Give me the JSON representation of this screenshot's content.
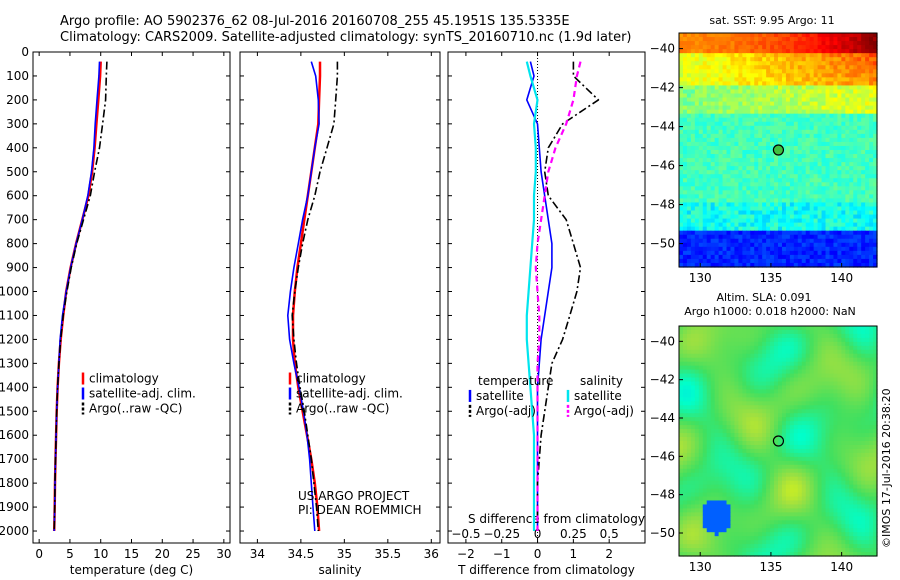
{
  "titles": {
    "line1": "Argo profile: AO 5902376_62 08-Jul-2016 20160708_255 45.1951S 135.5335E",
    "line2": "Climatology: CARS2009. Satellite-adjusted climatology: synTS_20160710.nc (1.9d later)",
    "map1_title": "sat. SST: 9.95 Argo: 11",
    "map2_title1": "Altim. SLA: 0.091",
    "map2_title2": "Argo h1000: 0.018 h2000: NaN",
    "stamp": "©IMOS 17-Jul-2016 20:38:20"
  },
  "colors": {
    "climatology": "#ff0000",
    "satellite": "#0000ff",
    "argo": "#000000",
    "sal_satellite": "#00e5ee",
    "sal_argo": "#ff00ff"
  },
  "chart_data": [
    {
      "type": "line",
      "xlabel": "temperature (deg C)",
      "xlim": [
        -1,
        31
      ],
      "xticks": [
        0,
        5,
        10,
        15,
        20,
        25,
        30
      ],
      "ylim": [
        0,
        2050
      ],
      "yticks": [
        0,
        100,
        200,
        300,
        400,
        500,
        600,
        700,
        800,
        900,
        1000,
        1100,
        1200,
        1300,
        1400,
        1500,
        1600,
        1700,
        1800,
        1900,
        2000
      ],
      "legend": [
        "climatology",
        "satellite-adj. clim.",
        "Argo(..raw -QC)"
      ],
      "series": [
        {
          "name": "climatology",
          "color": "#ff0000",
          "width": 2.5,
          "dash": "",
          "x": [
            10.0,
            9.9,
            9.6,
            9.3,
            9.0,
            8.6,
            8.0,
            7.0,
            6.0,
            5.1,
            4.4,
            3.9,
            3.5,
            3.2,
            3.0,
            2.85,
            2.75,
            2.65,
            2.58,
            2.52,
            2.45
          ],
          "y": [
            40,
            100,
            200,
            300,
            400,
            500,
            600,
            700,
            800,
            900,
            1000,
            1100,
            1200,
            1300,
            1400,
            1500,
            1600,
            1700,
            1800,
            1900,
            2000
          ]
        },
        {
          "name": "satellite-adj. clim.",
          "color": "#0000ff",
          "width": 1.6,
          "dash": "",
          "x": [
            9.8,
            9.7,
            9.4,
            9.1,
            8.9,
            8.5,
            7.9,
            7.0,
            6.0,
            5.1,
            4.4,
            3.8,
            3.4,
            3.2,
            3.0,
            2.85,
            2.75,
            2.65,
            2.58,
            2.52,
            2.45
          ],
          "y": [
            40,
            100,
            200,
            300,
            400,
            500,
            600,
            700,
            800,
            900,
            1000,
            1100,
            1200,
            1300,
            1400,
            1500,
            1600,
            1700,
            1800,
            1900,
            2000
          ]
        },
        {
          "name": "Argo(..raw -QC)",
          "color": "#000000",
          "width": 1.6,
          "dash": "8,3,2,3",
          "x": [
            11.0,
            10.9,
            10.8,
            10.3,
            9.8,
            9.0,
            8.3,
            7.2,
            6.1,
            5.2,
            4.5,
            3.9,
            3.5,
            3.2,
            3.0,
            2.85,
            2.75,
            2.65,
            2.58,
            2.52,
            2.45
          ],
          "y": [
            40,
            100,
            200,
            300,
            400,
            500,
            600,
            700,
            800,
            900,
            1000,
            1100,
            1200,
            1300,
            1400,
            1500,
            1600,
            1700,
            1800,
            1900,
            2000
          ]
        }
      ]
    },
    {
      "type": "line",
      "xlabel": "salinity",
      "xlim": [
        33.8,
        36.1
      ],
      "xticks": [
        34,
        34.5,
        35,
        35.5,
        36
      ],
      "xticklabels": [
        "34",
        "34.5",
        "35",
        "35.5",
        "36"
      ],
      "ylim": [
        0,
        2050
      ],
      "legend": [
        "climatology",
        "satellite-adj. clim.",
        "Argo(..raw -QC)"
      ],
      "annotation": [
        "US ARGO PROJECT",
        "PI: DEAN ROEMMICH"
      ],
      "series": [
        {
          "name": "climatology",
          "color": "#ff0000",
          "width": 2.5,
          "dash": "",
          "x": [
            34.72,
            34.72,
            34.71,
            34.7,
            34.66,
            34.62,
            34.58,
            34.54,
            34.5,
            34.46,
            34.43,
            34.41,
            34.41,
            34.43,
            34.47,
            34.52,
            34.57,
            34.62,
            34.66,
            34.69,
            34.71
          ],
          "y": [
            40,
            100,
            200,
            300,
            400,
            500,
            600,
            700,
            800,
            900,
            1000,
            1100,
            1200,
            1300,
            1400,
            1500,
            1600,
            1700,
            1800,
            1900,
            2000
          ]
        },
        {
          "name": "satellite-adj. clim.",
          "color": "#0000ff",
          "width": 1.6,
          "dash": "",
          "x": [
            34.62,
            34.67,
            34.7,
            34.71,
            34.66,
            34.62,
            34.58,
            34.52,
            34.47,
            34.42,
            34.38,
            34.35,
            34.37,
            34.42,
            34.48,
            34.53,
            34.57,
            34.6,
            34.62,
            34.64,
            34.66
          ],
          "y": [
            40,
            100,
            200,
            300,
            400,
            500,
            600,
            700,
            800,
            900,
            1000,
            1100,
            1200,
            1300,
            1400,
            1500,
            1600,
            1700,
            1800,
            1900,
            2000
          ]
        },
        {
          "name": "Argo(..raw -QC)",
          "color": "#000000",
          "width": 1.6,
          "dash": "8,3,2,3",
          "x": [
            34.92,
            34.92,
            34.9,
            34.88,
            34.8,
            34.72,
            34.66,
            34.58,
            34.52,
            34.47,
            34.43,
            34.4,
            34.42,
            34.45,
            34.49,
            34.54,
            34.58,
            34.62,
            34.65,
            34.68,
            34.7
          ],
          "y": [
            40,
            100,
            200,
            300,
            400,
            500,
            600,
            700,
            800,
            900,
            1000,
            1100,
            1200,
            1300,
            1400,
            1500,
            1600,
            1700,
            1800,
            1900,
            2000
          ]
        }
      ]
    },
    {
      "type": "line",
      "xlabel": "T difference from climatology",
      "xlabel_top": "S difference from climatology",
      "xlim": [
        -2.5,
        3
      ],
      "xticks": [
        -2,
        -1,
        0,
        1,
        2
      ],
      "xticks_top_labels": [
        "-0.5",
        "-0.25",
        "0",
        "0.25",
        "0.5"
      ],
      "ylim": [
        0,
        2050
      ],
      "legend_titles": [
        "temperature",
        "salinity"
      ],
      "legend": [
        "satellite",
        "Argo(-adj)",
        "satellite",
        "Argo(-adj)"
      ],
      "series": [
        {
          "name": "temperature satellite",
          "color": "#0000ff",
          "width": 1.6,
          "dash": "",
          "x": [
            -0.2,
            -0.1,
            -0.3,
            0.0,
            0.05,
            0.1,
            0.2,
            0.3,
            0.4,
            0.4,
            0.3,
            0.2,
            0.1,
            0.05,
            0.0,
            0.0,
            0.0,
            0.0,
            0.0,
            0.0,
            0.0
          ],
          "y": [
            40,
            100,
            200,
            300,
            400,
            500,
            600,
            700,
            800,
            900,
            1000,
            1100,
            1200,
            1300,
            1400,
            1500,
            1600,
            1700,
            1800,
            1900,
            2000
          ]
        },
        {
          "name": "temperature Argo(-adj)",
          "color": "#000000",
          "width": 1.6,
          "dash": "8,3,2,3",
          "x": [
            1.0,
            1.0,
            1.7,
            0.7,
            0.3,
            0.2,
            0.3,
            0.8,
            1.0,
            1.2,
            1.1,
            0.9,
            0.7,
            0.4,
            0.3,
            0.2,
            0.1,
            0.05,
            0.0,
            0.0,
            0.0
          ],
          "y": [
            40,
            100,
            200,
            300,
            400,
            500,
            600,
            700,
            800,
            900,
            1000,
            1100,
            1200,
            1300,
            1400,
            1500,
            1600,
            1700,
            1800,
            1900,
            2000
          ]
        },
        {
          "name": "salinity satellite",
          "color": "#00e5ee",
          "width": 2.2,
          "dash": "",
          "x": [
            -0.3,
            -0.2,
            0.0,
            -0.1,
            -0.05,
            -0.05,
            -0.1,
            -0.1,
            -0.15,
            -0.2,
            -0.25,
            -0.3,
            -0.3,
            -0.25,
            -0.2,
            -0.15,
            -0.1,
            -0.1,
            -0.1,
            -0.1,
            -0.1
          ],
          "y": [
            40,
            100,
            200,
            300,
            400,
            500,
            600,
            700,
            800,
            900,
            1000,
            1100,
            1200,
            1300,
            1400,
            1500,
            1600,
            1700,
            1800,
            1900,
            2000
          ]
        },
        {
          "name": "salinity Argo(-adj)",
          "color": "#ff00ff",
          "width": 2.2,
          "dash": "6,4",
          "x": [
            1.2,
            1.1,
            1.0,
            0.8,
            0.5,
            0.3,
            0.2,
            0.1,
            0.0,
            -0.05,
            0.0,
            0.05,
            0.05,
            0.0,
            0.0,
            0.0,
            0.0,
            0.0,
            0.0,
            0.0,
            0.0
          ],
          "y": [
            40,
            100,
            200,
            300,
            400,
            500,
            600,
            700,
            800,
            900,
            1000,
            1100,
            1200,
            1300,
            1400,
            1500,
            1600,
            1700,
            1800,
            1900,
            2000
          ]
        }
      ]
    },
    {
      "type": "heatmap",
      "title": "sat. SST: 9.95 Argo: 11",
      "xlim": [
        128.5,
        142.5
      ],
      "ylim": [
        -51.2,
        -39.2
      ],
      "xticks": [
        130,
        135,
        140
      ],
      "yticks": [
        -40,
        -42,
        -44,
        -46,
        -48,
        -50
      ],
      "colorscale": [
        "#00007f",
        "#0000ff",
        "#007fff",
        "#00ffff",
        "#7fff7f",
        "#ffff00",
        "#ff7f00",
        "#ff0000",
        "#7f0000"
      ],
      "marker": {
        "lon": 135.53,
        "lat": -45.2
      }
    },
    {
      "type": "heatmap",
      "title": "Altim. SLA: 0.091",
      "subtitle": "Argo h1000: 0.018 h2000: NaN",
      "xlim": [
        128.5,
        142.5
      ],
      "ylim": [
        -51.2,
        -39.2
      ],
      "xticks": [
        130,
        135,
        140
      ],
      "yticks": [
        -40,
        -42,
        -44,
        -46,
        -48,
        -50
      ],
      "marker": {
        "lon": 135.53,
        "lat": -45.2
      }
    }
  ]
}
